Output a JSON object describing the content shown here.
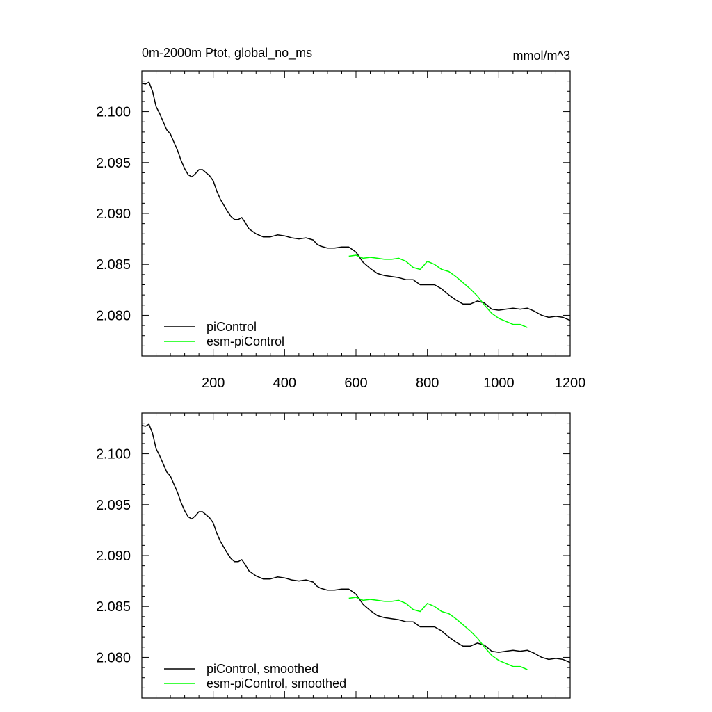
{
  "header": {
    "title": "0m-2000m Ptot, global_no_ms",
    "units": "mmol/m^3"
  },
  "colors": {
    "piControl": "#000000",
    "esm_piControl": "#00ff00",
    "axes": "#000000",
    "background": "#ffffff"
  },
  "chart_data": [
    {
      "type": "line",
      "title": "0m-2000m Ptot, global_no_ms",
      "units_label": "mmol/m^3",
      "xlim": [
        0,
        1200
      ],
      "ylim": [
        2.076,
        2.104
      ],
      "xticks": [
        200,
        400,
        600,
        800,
        1000,
        1200
      ],
      "xtick_labels": [
        "200",
        "400",
        "600",
        "800",
        "1000",
        "1200"
      ],
      "yticks": [
        2.08,
        2.085,
        2.09,
        2.095,
        2.1
      ],
      "ytick_labels": [
        "2.080",
        "2.085",
        "2.090",
        "2.095",
        "2.100"
      ],
      "legend_position": "bottom-left",
      "grid": false,
      "series": [
        {
          "name": "piControl",
          "color": "#000000",
          "x": [
            0,
            10,
            20,
            30,
            40,
            50,
            60,
            70,
            80,
            90,
            100,
            110,
            120,
            130,
            140,
            150,
            160,
            170,
            180,
            190,
            200,
            210,
            220,
            230,
            240,
            250,
            260,
            270,
            280,
            290,
            300,
            320,
            340,
            360,
            380,
            400,
            420,
            440,
            460,
            470,
            480,
            490,
            500,
            520,
            540,
            560,
            580,
            600,
            620,
            640,
            660,
            680,
            700,
            720,
            740,
            760,
            780,
            800,
            820,
            840,
            860,
            880,
            900,
            920,
            940,
            960,
            980,
            1000,
            1020,
            1040,
            1060,
            1080,
            1100,
            1120,
            1140,
            1160,
            1180,
            1200
          ],
          "y": [
            2.1028,
            2.1027,
            2.1029,
            2.102,
            2.1005,
            2.0998,
            2.099,
            2.0982,
            2.0978,
            2.097,
            2.0962,
            2.0952,
            2.0944,
            2.0938,
            2.0936,
            2.0939,
            2.0943,
            2.0943,
            2.094,
            2.0937,
            2.0932,
            2.0922,
            2.0914,
            2.0908,
            2.0902,
            2.0897,
            2.0894,
            2.0894,
            2.0896,
            2.0891,
            2.0885,
            2.088,
            2.0877,
            2.0877,
            2.0879,
            2.0878,
            2.0876,
            2.0875,
            2.0876,
            2.0875,
            2.0874,
            2.087,
            2.0868,
            2.0866,
            2.0866,
            2.0867,
            2.0867,
            2.0862,
            2.0852,
            2.0846,
            2.0841,
            2.0839,
            2.0838,
            2.0837,
            2.0835,
            2.0835,
            2.083,
            2.083,
            2.083,
            2.0826,
            2.082,
            2.0815,
            2.0811,
            2.0811,
            2.0814,
            2.0812,
            2.0806,
            2.0805,
            2.0806,
            2.0807,
            2.0806,
            2.0807,
            2.0804,
            2.08,
            2.0798,
            2.0799,
            2.0798,
            2.0795
          ]
        },
        {
          "name": "esm-piControl",
          "color": "#00ff00",
          "x": [
            580,
            600,
            620,
            640,
            660,
            680,
            700,
            720,
            740,
            760,
            780,
            800,
            820,
            840,
            860,
            880,
            900,
            920,
            940,
            960,
            980,
            1000,
            1020,
            1040,
            1060,
            1080
          ],
          "y": [
            2.0858,
            2.0859,
            2.0856,
            2.0857,
            2.0856,
            2.0855,
            2.0855,
            2.0856,
            2.0853,
            2.0847,
            2.0845,
            2.0853,
            2.085,
            2.0845,
            2.0843,
            2.0838,
            2.0832,
            2.0826,
            2.0819,
            2.081,
            2.0802,
            2.0797,
            2.0794,
            2.0791,
            2.0791,
            2.0788
          ]
        }
      ]
    },
    {
      "type": "line",
      "xlim": [
        0,
        1200
      ],
      "ylim": [
        2.076,
        2.104
      ],
      "xticks": [
        200,
        400,
        600,
        800,
        1000,
        1200
      ],
      "yticks": [
        2.08,
        2.085,
        2.09,
        2.095,
        2.1
      ],
      "ytick_labels": [
        "2.080",
        "2.085",
        "2.090",
        "2.095",
        "2.100"
      ],
      "legend_position": "bottom-left",
      "grid": false,
      "series": [
        {
          "name": "piControl, smoothed",
          "color": "#000000",
          "x": [
            0,
            10,
            20,
            30,
            40,
            50,
            60,
            70,
            80,
            90,
            100,
            110,
            120,
            130,
            140,
            150,
            160,
            170,
            180,
            190,
            200,
            210,
            220,
            230,
            240,
            250,
            260,
            270,
            280,
            290,
            300,
            320,
            340,
            360,
            380,
            400,
            420,
            440,
            460,
            470,
            480,
            490,
            500,
            520,
            540,
            560,
            580,
            600,
            620,
            640,
            660,
            680,
            700,
            720,
            740,
            760,
            780,
            800,
            820,
            840,
            860,
            880,
            900,
            920,
            940,
            960,
            980,
            1000,
            1020,
            1040,
            1060,
            1080,
            1100,
            1120,
            1140,
            1160,
            1180,
            1200
          ],
          "y": [
            2.1028,
            2.1027,
            2.1029,
            2.102,
            2.1005,
            2.0998,
            2.099,
            2.0982,
            2.0978,
            2.097,
            2.0962,
            2.0952,
            2.0944,
            2.0938,
            2.0936,
            2.0939,
            2.0943,
            2.0943,
            2.094,
            2.0937,
            2.0932,
            2.0922,
            2.0914,
            2.0908,
            2.0902,
            2.0897,
            2.0894,
            2.0894,
            2.0896,
            2.0891,
            2.0885,
            2.088,
            2.0877,
            2.0877,
            2.0879,
            2.0878,
            2.0876,
            2.0875,
            2.0876,
            2.0875,
            2.0874,
            2.087,
            2.0868,
            2.0866,
            2.0866,
            2.0867,
            2.0867,
            2.0862,
            2.0852,
            2.0846,
            2.0841,
            2.0839,
            2.0838,
            2.0837,
            2.0835,
            2.0835,
            2.083,
            2.083,
            2.083,
            2.0826,
            2.082,
            2.0815,
            2.0811,
            2.0811,
            2.0814,
            2.0812,
            2.0806,
            2.0805,
            2.0806,
            2.0807,
            2.0806,
            2.0807,
            2.0804,
            2.08,
            2.0798,
            2.0799,
            2.0798,
            2.0795
          ]
        },
        {
          "name": "esm-piControl, smoothed",
          "color": "#00ff00",
          "x": [
            580,
            600,
            620,
            640,
            660,
            680,
            700,
            720,
            740,
            760,
            780,
            800,
            820,
            840,
            860,
            880,
            900,
            920,
            940,
            960,
            980,
            1000,
            1020,
            1040,
            1060,
            1080
          ],
          "y": [
            2.0858,
            2.0859,
            2.0856,
            2.0857,
            2.0856,
            2.0855,
            2.0855,
            2.0856,
            2.0853,
            2.0847,
            2.0845,
            2.0853,
            2.085,
            2.0845,
            2.0843,
            2.0838,
            2.0832,
            2.0826,
            2.0819,
            2.081,
            2.0802,
            2.0797,
            2.0794,
            2.0791,
            2.0791,
            2.0788
          ]
        }
      ]
    }
  ]
}
